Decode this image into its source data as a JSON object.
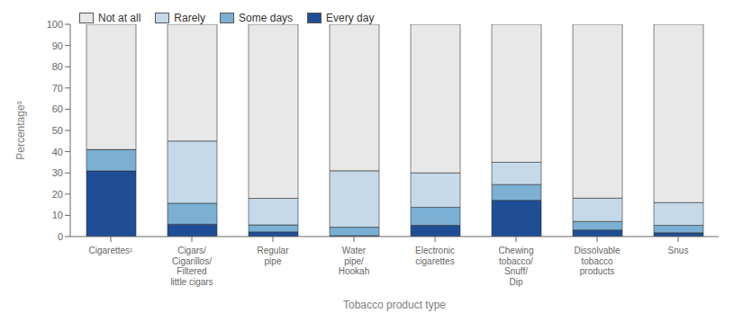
{
  "chart_data": {
    "type": "bar",
    "stacked": true,
    "grid": false,
    "legend": "upper left",
    "xlabel": "Tobacco product type",
    "ylabel": "Percentageˢ",
    "categories": [
      "Cigarettes¹",
      "Cigars/\nCigarillos/\nFiltered\nlittle cigars",
      "Regular\npipe",
      "Water\npipe/\nHookah",
      "Electronic\ncigarettes",
      "Chewing\ntobacco/\nSnuff/\nDip",
      "Dissolvable\ntobacco\nproducts",
      "Snus"
    ],
    "series": [
      {
        "name": "Every day",
        "color": "#1f4e96",
        "values": [
          30.9,
          5.8,
          2.2,
          0.4,
          5.3,
          17.1,
          3.1,
          1.8
        ]
      },
      {
        "name": "Some days",
        "color": "#7bafd4",
        "values": [
          10.0,
          9.9,
          3.3,
          4.0,
          8.5,
          7.4,
          4.0,
          3.5
        ]
      },
      {
        "name": "Rarely",
        "color": "#c5d9e8",
        "values": [
          0.1,
          29.3,
          12.5,
          26.6,
          16.2,
          10.5,
          11.0,
          10.7
        ]
      },
      {
        "name": "Not at all",
        "color": "#e8e8e8",
        "values": [
          59.0,
          55.0,
          82.0,
          69.0,
          70.0,
          65.0,
          81.9,
          84.0
        ]
      }
    ],
    "ylim": [
      0,
      100
    ],
    "yticks": [
      0,
      10,
      20,
      30,
      40,
      50,
      60,
      70,
      80,
      90,
      100
    ]
  }
}
